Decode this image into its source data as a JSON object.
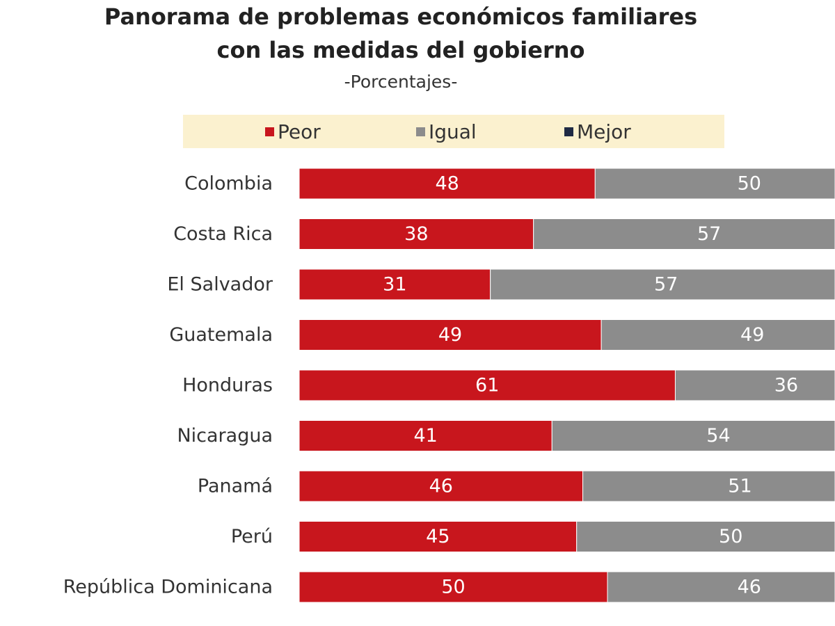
{
  "chart_data": {
    "type": "bar",
    "orientation": "horizontal",
    "stacked": true,
    "title_line1": "Panorama de problemas económicos familiares",
    "title_line2": "con las medidas del gobierno",
    "subtitle": "-Porcentajes-",
    "legend": [
      {
        "name": "Peor",
        "color": "#c8161d"
      },
      {
        "name": "Igual",
        "color": "#8c8c8c"
      },
      {
        "name": "Mejor",
        "color": "#1f2a44"
      }
    ],
    "legend_position": "top",
    "categories": [
      "Colombia",
      "Costa Rica",
      "El Salvador",
      "Guatemala",
      "Honduras",
      "Nicaragua",
      "Panamá",
      "Perú",
      "República Dominicana"
    ],
    "series": [
      {
        "name": "Peor",
        "color": "#c8161d",
        "values": [
          48,
          38,
          31,
          49,
          61,
          41,
          46,
          45,
          50
        ]
      },
      {
        "name": "Igual",
        "color": "#8c8c8c",
        "values": [
          50,
          57,
          57,
          49,
          36,
          54,
          51,
          50,
          46
        ]
      }
    ],
    "grid": false
  }
}
